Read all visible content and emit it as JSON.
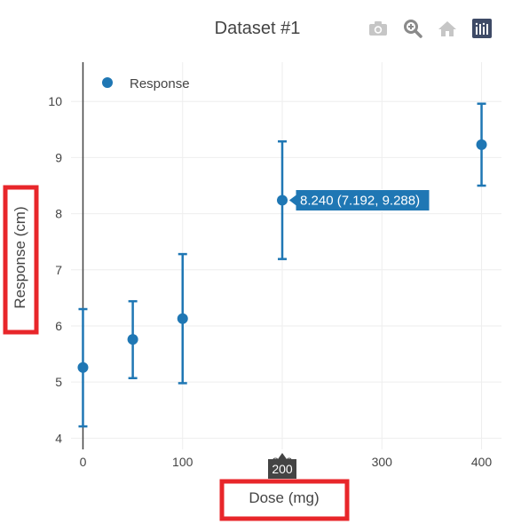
{
  "chart_data": {
    "type": "scatter",
    "title": "Dataset #1",
    "xlabel": "Dose (mg)",
    "ylabel": "Response (cm)",
    "xlim": [
      -12,
      420
    ],
    "ylim": [
      3.8,
      10.7
    ],
    "xticks": [
      0,
      100,
      200,
      300,
      400
    ],
    "yticks": [
      4,
      5,
      6,
      7,
      8,
      9,
      10
    ],
    "grid": true,
    "legend_position": "top-left",
    "series": [
      {
        "name": "Response",
        "color": "#1f77b4",
        "x": [
          0,
          50,
          100,
          200,
          400
        ],
        "y": [
          5.26,
          5.76,
          6.13,
          8.24,
          9.23
        ],
        "error_low": [
          4.21,
          5.07,
          4.98,
          7.192,
          8.5
        ],
        "error_high": [
          6.3,
          6.44,
          7.28,
          9.288,
          9.96
        ]
      }
    ],
    "hover": {
      "point_index": 3,
      "label": "8.240 (7.192, 9.288)",
      "x_label": "200"
    }
  },
  "highlight_color": "#e8262a",
  "toolbar": {
    "icons": [
      "camera-icon",
      "zoom-icon",
      "home-icon",
      "plotly-logo-icon"
    ]
  }
}
